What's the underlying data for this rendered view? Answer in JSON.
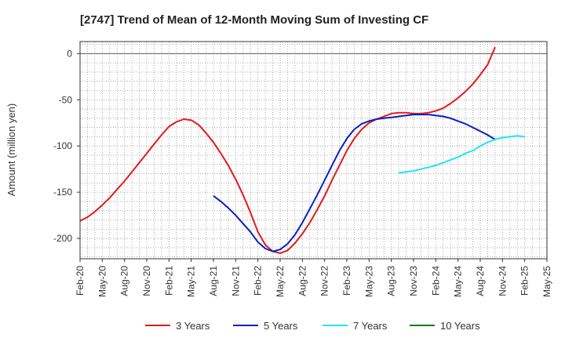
{
  "chart_data": {
    "type": "line",
    "title": "[2747]  Trend of Mean of 12-Month Moving Sum of Investing CF",
    "xlabel": "",
    "ylabel": "Amount (million yen)",
    "ylim": [
      -222,
      13
    ],
    "yticks": [
      0,
      -50,
      -100,
      -150,
      -200
    ],
    "x_start": "Feb-20",
    "x_months_total": 63,
    "xtick_labels": [
      "Feb-20",
      "May-20",
      "Aug-20",
      "Nov-20",
      "Feb-21",
      "May-21",
      "Aug-21",
      "Nov-21",
      "Feb-22",
      "May-22",
      "Aug-22",
      "Nov-22",
      "Feb-23",
      "May-23",
      "Aug-23",
      "Nov-23",
      "Feb-24",
      "May-24",
      "Aug-24",
      "Nov-24",
      "Feb-25",
      "May-25"
    ],
    "grid": true,
    "legend_position": "bottom",
    "series": [
      {
        "name": "3 Years",
        "color": "#e31a1c",
        "start_index": 0,
        "values": [
          -181,
          -177,
          -171,
          -164,
          -156,
          -147,
          -138,
          -128,
          -118,
          -108,
          -98,
          -88,
          -79,
          -74,
          -71,
          -72,
          -77,
          -86,
          -96,
          -108,
          -121,
          -136,
          -153,
          -172,
          -193,
          -207,
          -214,
          -216,
          -213,
          -205,
          -195,
          -183,
          -169,
          -154,
          -137,
          -121,
          -105,
          -92,
          -82,
          -75,
          -71,
          -68,
          -65,
          -64,
          -64,
          -65,
          -65,
          -64,
          -62,
          -59,
          -54,
          -48,
          -41,
          -33,
          -23,
          -12,
          7
        ]
      },
      {
        "name": "5 Years",
        "color": "#0a1fc0",
        "start_index": 18,
        "values": [
          -154,
          -160,
          -167,
          -175,
          -184,
          -193,
          -204,
          -211,
          -214,
          -212,
          -206,
          -196,
          -183,
          -168,
          -153,
          -137,
          -121,
          -105,
          -92,
          -82,
          -76,
          -73,
          -71,
          -70,
          -69,
          -68,
          -67,
          -66,
          -66,
          -66,
          -67,
          -68,
          -70,
          -73,
          -76,
          -80,
          -84,
          -88,
          -93
        ]
      },
      {
        "name": "7 Years",
        "color": "#1ee6f0",
        "start_index": 43,
        "values": [
          -129,
          -128,
          -127,
          -125,
          -123,
          -121,
          -118,
          -115,
          -112,
          -108,
          -105,
          -100,
          -96,
          -93,
          -91,
          -90,
          -89,
          -90
        ]
      },
      {
        "name": "10 Years",
        "color": "#1a7a1a",
        "start_index": 0,
        "values": []
      }
    ]
  }
}
